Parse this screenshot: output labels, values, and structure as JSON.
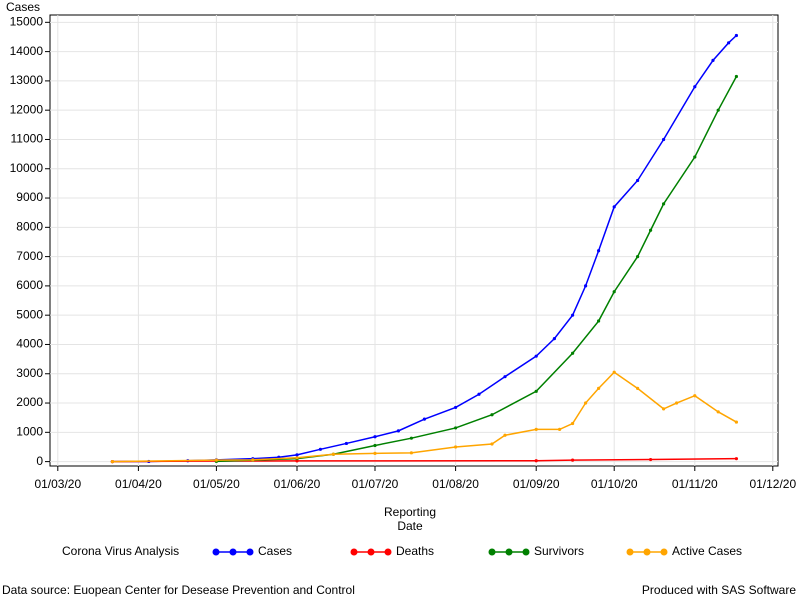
{
  "chart_data": {
    "type": "line",
    "ylabel": "Cases",
    "xlabel": "Reporting Date",
    "legend_title": "Corona Virus Analysis",
    "source": "Data source: Euopean Center for Desease Prevention and Control",
    "credit": "Produced with SAS Software",
    "xlim": [
      "27/02/20",
      "03/12/20"
    ],
    "xticks": [
      "01/03/20",
      "01/04/20",
      "01/05/20",
      "01/06/20",
      "01/07/20",
      "01/08/20",
      "01/09/20",
      "01/10/20",
      "01/11/20",
      "01/12/20"
    ],
    "ylim": [
      -150,
      15250
    ],
    "yticks": [
      0,
      1000,
      2000,
      3000,
      4000,
      5000,
      6000,
      7000,
      8000,
      9000,
      10000,
      11000,
      12000,
      13000,
      14000,
      15000
    ],
    "grid": true,
    "legend": "bottom",
    "series": [
      {
        "name": "Cases",
        "color": "#0000ff",
        "x": [
          "22/03/20",
          "05/04/20",
          "20/04/20",
          "01/05/20",
          "15/05/20",
          "25/05/20",
          "01/06/20",
          "10/06/20",
          "20/06/20",
          "01/07/20",
          "10/07/20",
          "20/07/20",
          "01/08/20",
          "10/08/20",
          "20/08/20",
          "01/09/20",
          "08/09/20",
          "15/09/20",
          "20/09/20",
          "25/09/20",
          "01/10/20",
          "10/10/20",
          "20/10/20",
          "01/11/20",
          "08/11/20",
          "14/11/20",
          "17/11/20"
        ],
        "values": [
          0,
          5,
          30,
          60,
          100,
          150,
          230,
          420,
          620,
          850,
          1050,
          1450,
          1850,
          2300,
          2900,
          3600,
          4200,
          5000,
          6000,
          7200,
          8700,
          9600,
          11000,
          12800,
          13700,
          14300,
          14550
        ]
      },
      {
        "name": "Deaths",
        "color": "#ff0000",
        "x": [
          "22/03/20",
          "01/05/20",
          "01/06/20",
          "01/09/20",
          "15/09/20",
          "15/10/20",
          "17/11/20"
        ],
        "values": [
          0,
          20,
          25,
          30,
          50,
          70,
          100
        ]
      },
      {
        "name": "Survivors",
        "color": "#008000",
        "x": [
          "01/05/20",
          "15/05/20",
          "01/06/20",
          "15/06/20",
          "01/07/20",
          "15/07/20",
          "01/08/20",
          "15/08/20",
          "01/09/20",
          "15/09/20",
          "25/09/20",
          "01/10/20",
          "10/10/20",
          "15/10/20",
          "20/10/20",
          "01/11/20",
          "10/11/20",
          "17/11/20"
        ],
        "values": [
          10,
          50,
          100,
          250,
          550,
          800,
          1150,
          1600,
          2400,
          3700,
          4800,
          5800,
          7000,
          7900,
          8800,
          10400,
          12000,
          13150
        ]
      },
      {
        "name": "Active Cases",
        "color": "#ffa500",
        "x": [
          "22/03/20",
          "01/05/20",
          "15/05/20",
          "01/06/20",
          "15/06/20",
          "01/07/20",
          "15/07/20",
          "01/08/20",
          "15/08/20",
          "20/08/20",
          "01/09/20",
          "10/09/20",
          "15/09/20",
          "20/09/20",
          "25/09/20",
          "01/10/20",
          "10/10/20",
          "20/10/20",
          "25/10/20",
          "01/11/20",
          "10/11/20",
          "17/11/20"
        ],
        "values": [
          0,
          50,
          60,
          130,
          250,
          280,
          300,
          500,
          600,
          900,
          1100,
          1100,
          1300,
          2000,
          2500,
          3050,
          2500,
          1800,
          2000,
          2250,
          1700,
          1350
        ]
      }
    ]
  }
}
